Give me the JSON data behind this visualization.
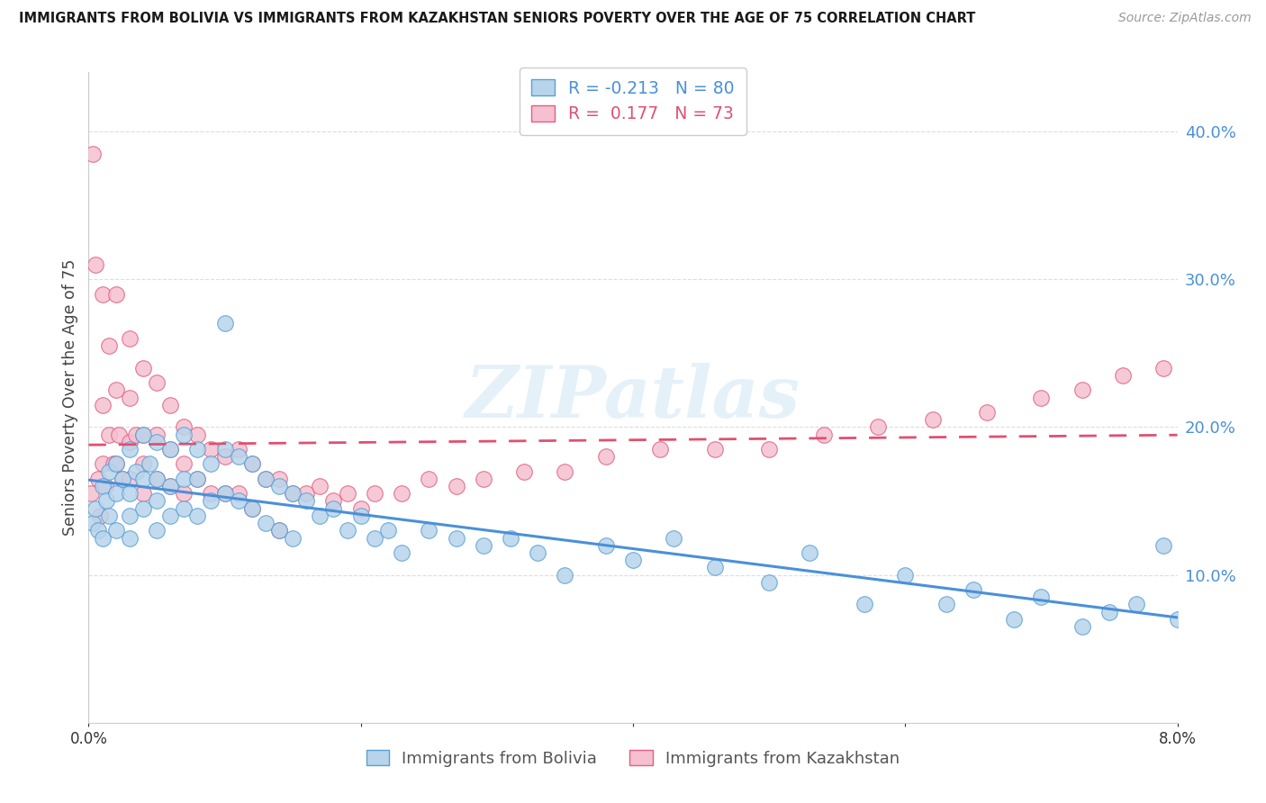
{
  "title": "IMMIGRANTS FROM BOLIVIA VS IMMIGRANTS FROM KAZAKHSTAN SENIORS POVERTY OVER THE AGE OF 75 CORRELATION CHART",
  "source": "Source: ZipAtlas.com",
  "ylabel": "Seniors Poverty Over the Age of 75",
  "xlim": [
    0.0,
    0.08
  ],
  "ylim": [
    0.0,
    0.44
  ],
  "ytick_vals": [
    0.1,
    0.2,
    0.3,
    0.4
  ],
  "legend_label_bolivia": "Immigrants from Bolivia",
  "legend_label_kazakhstan": "Immigrants from Kazakhstan",
  "R_bolivia": -0.213,
  "N_bolivia": 80,
  "R_kazakhstan": 0.177,
  "N_kazakhstan": 73,
  "color_bolivia_face": "#b8d4eb",
  "color_bolivia_edge": "#5a9fd4",
  "color_kazakhstan_face": "#f5c0d0",
  "color_kazakhstan_edge": "#e06080",
  "line_color_bolivia": "#4a90d9",
  "line_color_kazakhstan": "#e05070",
  "watermark": "ZIPatlas",
  "bolivia_x": [
    0.0003,
    0.0005,
    0.0007,
    0.001,
    0.001,
    0.0013,
    0.0015,
    0.0015,
    0.002,
    0.002,
    0.002,
    0.0025,
    0.003,
    0.003,
    0.003,
    0.003,
    0.0035,
    0.004,
    0.004,
    0.004,
    0.0045,
    0.005,
    0.005,
    0.005,
    0.005,
    0.006,
    0.006,
    0.006,
    0.007,
    0.007,
    0.007,
    0.008,
    0.008,
    0.008,
    0.009,
    0.009,
    0.01,
    0.01,
    0.01,
    0.011,
    0.011,
    0.012,
    0.012,
    0.013,
    0.013,
    0.014,
    0.014,
    0.015,
    0.015,
    0.016,
    0.017,
    0.018,
    0.019,
    0.02,
    0.021,
    0.022,
    0.023,
    0.025,
    0.027,
    0.029,
    0.031,
    0.033,
    0.035,
    0.038,
    0.04,
    0.043,
    0.046,
    0.05,
    0.053,
    0.057,
    0.06,
    0.063,
    0.065,
    0.068,
    0.07,
    0.073,
    0.075,
    0.077,
    0.079,
    0.08
  ],
  "bolivia_y": [
    0.135,
    0.145,
    0.13,
    0.16,
    0.125,
    0.15,
    0.17,
    0.14,
    0.175,
    0.155,
    0.13,
    0.165,
    0.185,
    0.155,
    0.14,
    0.125,
    0.17,
    0.195,
    0.165,
    0.145,
    0.175,
    0.19,
    0.165,
    0.15,
    0.13,
    0.185,
    0.16,
    0.14,
    0.195,
    0.165,
    0.145,
    0.185,
    0.165,
    0.14,
    0.175,
    0.15,
    0.27,
    0.185,
    0.155,
    0.18,
    0.15,
    0.175,
    0.145,
    0.165,
    0.135,
    0.16,
    0.13,
    0.155,
    0.125,
    0.15,
    0.14,
    0.145,
    0.13,
    0.14,
    0.125,
    0.13,
    0.115,
    0.13,
    0.125,
    0.12,
    0.125,
    0.115,
    0.1,
    0.12,
    0.11,
    0.125,
    0.105,
    0.095,
    0.115,
    0.08,
    0.1,
    0.08,
    0.09,
    0.07,
    0.085,
    0.065,
    0.075,
    0.08,
    0.12,
    0.07
  ],
  "kazakhstan_x": [
    0.0002,
    0.0003,
    0.0005,
    0.0007,
    0.0008,
    0.001,
    0.001,
    0.001,
    0.0012,
    0.0015,
    0.0015,
    0.0018,
    0.002,
    0.002,
    0.002,
    0.0022,
    0.0025,
    0.003,
    0.003,
    0.003,
    0.003,
    0.0035,
    0.004,
    0.004,
    0.004,
    0.004,
    0.005,
    0.005,
    0.005,
    0.006,
    0.006,
    0.006,
    0.007,
    0.007,
    0.007,
    0.008,
    0.008,
    0.009,
    0.009,
    0.01,
    0.01,
    0.011,
    0.011,
    0.012,
    0.012,
    0.013,
    0.014,
    0.014,
    0.015,
    0.016,
    0.017,
    0.018,
    0.019,
    0.02,
    0.021,
    0.023,
    0.025,
    0.027,
    0.029,
    0.032,
    0.035,
    0.038,
    0.042,
    0.046,
    0.05,
    0.054,
    0.058,
    0.062,
    0.066,
    0.07,
    0.073,
    0.076,
    0.079
  ],
  "kazakhstan_y": [
    0.155,
    0.385,
    0.31,
    0.165,
    0.14,
    0.29,
    0.215,
    0.175,
    0.16,
    0.255,
    0.195,
    0.175,
    0.29,
    0.225,
    0.175,
    0.195,
    0.165,
    0.26,
    0.22,
    0.19,
    0.165,
    0.195,
    0.24,
    0.195,
    0.175,
    0.155,
    0.23,
    0.195,
    0.165,
    0.215,
    0.185,
    0.16,
    0.2,
    0.175,
    0.155,
    0.195,
    0.165,
    0.185,
    0.155,
    0.18,
    0.155,
    0.185,
    0.155,
    0.175,
    0.145,
    0.165,
    0.165,
    0.13,
    0.155,
    0.155,
    0.16,
    0.15,
    0.155,
    0.145,
    0.155,
    0.155,
    0.165,
    0.16,
    0.165,
    0.17,
    0.17,
    0.18,
    0.185,
    0.185,
    0.185,
    0.195,
    0.2,
    0.205,
    0.21,
    0.22,
    0.225,
    0.235,
    0.24
  ]
}
